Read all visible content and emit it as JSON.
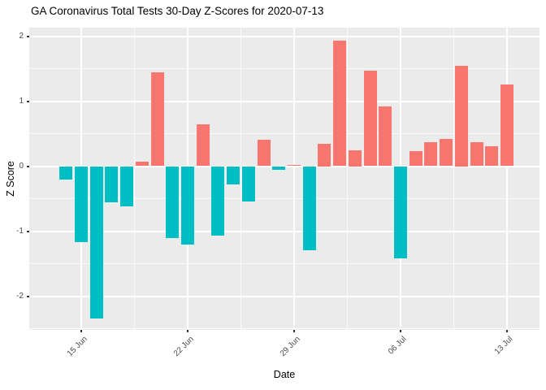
{
  "title": "GA Coronavirus Total Tests 30-Day Z-Scores for 2020-07-13",
  "chart_data": {
    "type": "bar",
    "title": "GA Coronavirus Total Tests 30-Day Z-Scores for 2020-07-13",
    "xlabel": "Date",
    "ylabel": "Z Score",
    "dates": [
      "14 Jun",
      "15 Jun",
      "16 Jun",
      "17 Jun",
      "18 Jun",
      "19 Jun",
      "20 Jun",
      "21 Jun",
      "22 Jun",
      "23 Jun",
      "24 Jun",
      "25 Jun",
      "26 Jun",
      "27 Jun",
      "28 Jun",
      "29 Jun",
      "30 Jun",
      "01 Jul",
      "02 Jul",
      "03 Jul",
      "04 Jul",
      "05 Jul",
      "06 Jul",
      "07 Jul",
      "08 Jul",
      "09 Jul",
      "10 Jul",
      "11 Jul",
      "12 Jul",
      "13 Jul"
    ],
    "values": [
      -0.2,
      -1.17,
      -2.34,
      -0.56,
      -0.62,
      0.07,
      1.44,
      -1.1,
      -1.2,
      0.64,
      -1.07,
      -0.28,
      -0.54,
      0.41,
      -0.06,
      0.02,
      -1.29,
      0.35,
      1.93,
      0.25,
      1.47,
      0.92,
      -1.42,
      0.23,
      0.37,
      0.42,
      1.55,
      0.37,
      0.31,
      1.26
    ],
    "x_tick_labels": [
      "15 Jun",
      "22 Jun",
      "29 Jun",
      "06 Jul",
      "13 Jul"
    ],
    "y_tick_values": [
      2,
      1,
      0,
      -1,
      -2
    ],
    "y_minor_values": [
      1.5,
      0.5,
      -0.5,
      -1.5,
      -2.5
    ],
    "ylim": [
      -2.55,
      2.15
    ],
    "grid": "on",
    "legend": "none",
    "colors": {
      "positive_bar": "#F8766D",
      "negative_bar": "#00BFC4",
      "panel_background": "#EBEBEB",
      "gridline": "#FFFFFF",
      "axis_text": "#4D4D4D",
      "tick_mark": "#333333",
      "title_text": "#000000"
    }
  }
}
